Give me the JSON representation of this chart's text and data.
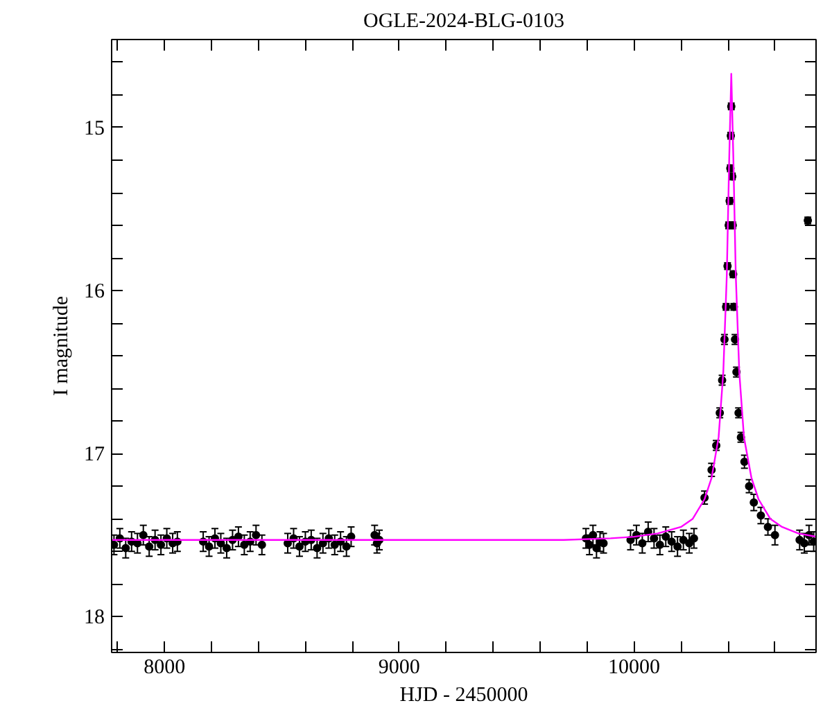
{
  "chart_data": {
    "type": "scatter",
    "title": "OGLE-2024-BLG-0103",
    "xlabel": "HJD - 2450000",
    "ylabel": "I magnitude",
    "xlim": [
      7775,
      10775
    ],
    "ylim": [
      18.22,
      14.46
    ],
    "xticks": [
      {
        "value": 7800,
        "label": null
      },
      8000,
      {
        "value": 8200,
        "label": null
      },
      {
        "value": 8400,
        "label": null
      },
      {
        "value": 8600,
        "label": null
      },
      {
        "value": 8800,
        "label": null
      },
      9000,
      {
        "value": 9200,
        "label": null
      },
      {
        "value": 9400,
        "label": null
      },
      {
        "value": 9600,
        "label": null
      },
      {
        "value": 9800,
        "label": null
      },
      10000,
      {
        "value": 10200,
        "label": null
      },
      {
        "value": 10400,
        "label": null
      },
      {
        "value": 10600,
        "label": null
      }
    ],
    "yticks": [
      {
        "value": 14.6,
        "label": null
      },
      {
        "value": 14.8,
        "label": null
      },
      15,
      {
        "value": 15.2,
        "label": null
      },
      {
        "value": 15.4,
        "label": null
      },
      {
        "value": 15.6,
        "label": null
      },
      {
        "value": 15.8,
        "label": null
      },
      16,
      {
        "value": 16.2,
        "label": null
      },
      {
        "value": 16.4,
        "label": null
      },
      {
        "value": 16.6,
        "label": null
      },
      {
        "value": 16.8,
        "label": null
      },
      17,
      {
        "value": 17.2,
        "label": null
      },
      {
        "value": 17.4,
        "label": null
      },
      {
        "value": 17.6,
        "label": null
      },
      {
        "value": 17.8,
        "label": null
      },
      18,
      {
        "value": 18.2,
        "label": null
      }
    ],
    "series": [
      {
        "color": "#000000",
        "marker": "circle",
        "x": [
          7785,
          7810,
          7835,
          7860,
          7885,
          7910,
          7935,
          7960,
          7985,
          8010,
          8035,
          8055,
          8165,
          8190,
          8215,
          8240,
          8265,
          8290,
          8315,
          8340,
          8365,
          8390,
          8415,
          8525,
          8550,
          8575,
          8600,
          8625,
          8650,
          8675,
          8700,
          8725,
          8750,
          8775,
          8795,
          8895,
          8905,
          8915,
          9795,
          9810,
          9825,
          9840,
          9855,
          9870,
          9985,
          10010,
          10035,
          10060,
          10085,
          10110,
          10135,
          10160,
          10185,
          10210,
          10235,
          10255,
          10300,
          10330,
          10350,
          10365,
          10375,
          10385,
          10392,
          10398,
          10403,
          10407,
          10410,
          10412,
          10414,
          10418,
          10420,
          10422,
          10425,
          10430,
          10436,
          10445,
          10455,
          10470,
          10490,
          10510,
          10540,
          10570,
          10600,
          10705,
          10725,
          10740,
          10745,
          10765
        ],
        "values": [
          17.56,
          17.52,
          17.58,
          17.54,
          17.55,
          17.5,
          17.57,
          17.53,
          17.56,
          17.52,
          17.55,
          17.54,
          17.54,
          17.57,
          17.52,
          17.55,
          17.58,
          17.53,
          17.51,
          17.56,
          17.54,
          17.5,
          17.56,
          17.55,
          17.52,
          17.57,
          17.54,
          17.53,
          17.58,
          17.55,
          17.52,
          17.56,
          17.54,
          17.57,
          17.51,
          17.5,
          17.55,
          17.53,
          17.52,
          17.56,
          17.5,
          17.58,
          17.54,
          17.55,
          17.53,
          17.5,
          17.55,
          17.48,
          17.52,
          17.56,
          17.51,
          17.54,
          17.57,
          17.53,
          17.55,
          17.52,
          17.27,
          17.1,
          16.95,
          16.75,
          16.55,
          16.3,
          16.1,
          15.85,
          15.6,
          15.45,
          15.25,
          15.05,
          14.87,
          15.3,
          15.6,
          15.9,
          16.1,
          16.3,
          16.5,
          16.75,
          16.9,
          17.05,
          17.2,
          17.3,
          17.38,
          17.45,
          17.5,
          17.53,
          17.55,
          15.57,
          17.5,
          17.54
        ],
        "errors": [
          0.06,
          0.06,
          0.06,
          0.06,
          0.06,
          0.06,
          0.06,
          0.06,
          0.06,
          0.06,
          0.06,
          0.06,
          0.06,
          0.06,
          0.06,
          0.06,
          0.06,
          0.06,
          0.06,
          0.06,
          0.06,
          0.06,
          0.06,
          0.06,
          0.06,
          0.06,
          0.06,
          0.06,
          0.06,
          0.06,
          0.06,
          0.06,
          0.06,
          0.06,
          0.06,
          0.06,
          0.06,
          0.06,
          0.06,
          0.06,
          0.06,
          0.06,
          0.06,
          0.06,
          0.06,
          0.06,
          0.06,
          0.06,
          0.06,
          0.06,
          0.06,
          0.06,
          0.06,
          0.06,
          0.06,
          0.06,
          0.04,
          0.04,
          0.03,
          0.03,
          0.03,
          0.03,
          0.02,
          0.02,
          0.02,
          0.02,
          0.02,
          0.02,
          0.02,
          0.02,
          0.02,
          0.02,
          0.02,
          0.03,
          0.03,
          0.03,
          0.03,
          0.04,
          0.04,
          0.05,
          0.05,
          0.05,
          0.06,
          0.06,
          0.06,
          0.02,
          0.06,
          0.06
        ]
      },
      {
        "type": "line",
        "color": "#ff00ff",
        "marker": "none",
        "x": [
          7775,
          9700,
          9900,
          10000,
          10100,
          10200,
          10250,
          10300,
          10330,
          10360,
          10380,
          10395,
          10405,
          10414,
          10423,
          10433,
          10448,
          10468,
          10500,
          10530,
          10580,
          10630,
          10700,
          10775
        ],
        "values": [
          17.53,
          17.53,
          17.52,
          17.51,
          17.49,
          17.45,
          17.4,
          17.28,
          17.15,
          16.9,
          16.5,
          15.9,
          15.2,
          14.67,
          15.2,
          15.9,
          16.5,
          16.9,
          17.15,
          17.28,
          17.4,
          17.45,
          17.49,
          17.51
        ]
      }
    ]
  }
}
